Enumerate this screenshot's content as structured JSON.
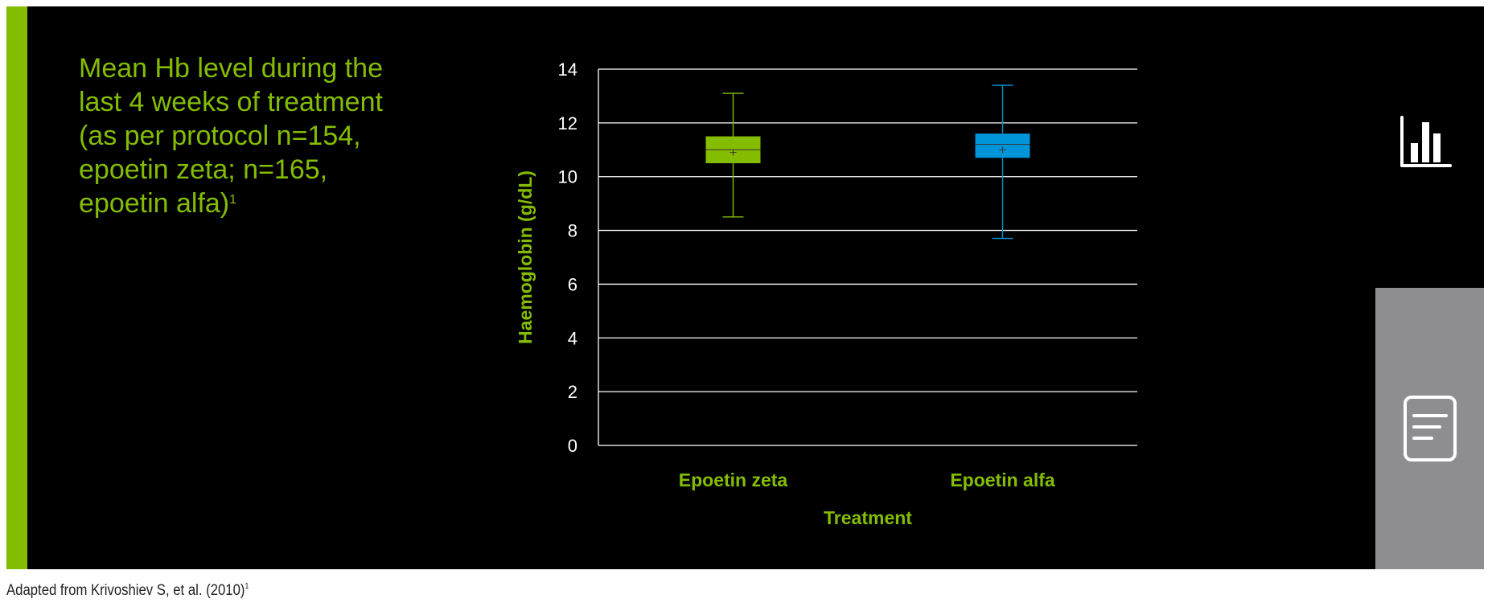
{
  "title": {
    "text": "Mean Hb level during the\nlast 4 weeks of treatment\n(as per protocol n=154,\nepoetin zeta; n=165,\nepoetin alfa)",
    "superscript": "1"
  },
  "chart_data": {
    "type": "box",
    "xlabel": "Treatment",
    "ylabel": "Haemoglobin (g/dL)",
    "ylim": [
      0,
      14
    ],
    "yticks": [
      0,
      2,
      4,
      6,
      8,
      10,
      12,
      14
    ],
    "grid": true,
    "categories": [
      "Epoetin zeta",
      "Epoetin alfa"
    ],
    "boxes": [
      {
        "category": "Epoetin zeta",
        "min": 8.5,
        "q1": 10.5,
        "median": 11.0,
        "mean": 10.9,
        "q3": 11.5,
        "max": 13.1,
        "color": "#84bd00"
      },
      {
        "category": "Epoetin alfa",
        "min": 7.7,
        "q1": 10.7,
        "median": 11.2,
        "mean": 11.0,
        "q3": 11.6,
        "max": 13.4,
        "color": "#0095d9"
      }
    ]
  },
  "colors": {
    "accent": "#84bd00",
    "secondary": "#0095d9",
    "background": "#000000",
    "side_panel": "#8e8e90"
  },
  "side_icons": [
    "bar-chart-icon",
    "document-icon"
  ],
  "footnote": {
    "text": "Adapted from Krivoshiev S, et al. (2010)",
    "superscript": "1"
  }
}
